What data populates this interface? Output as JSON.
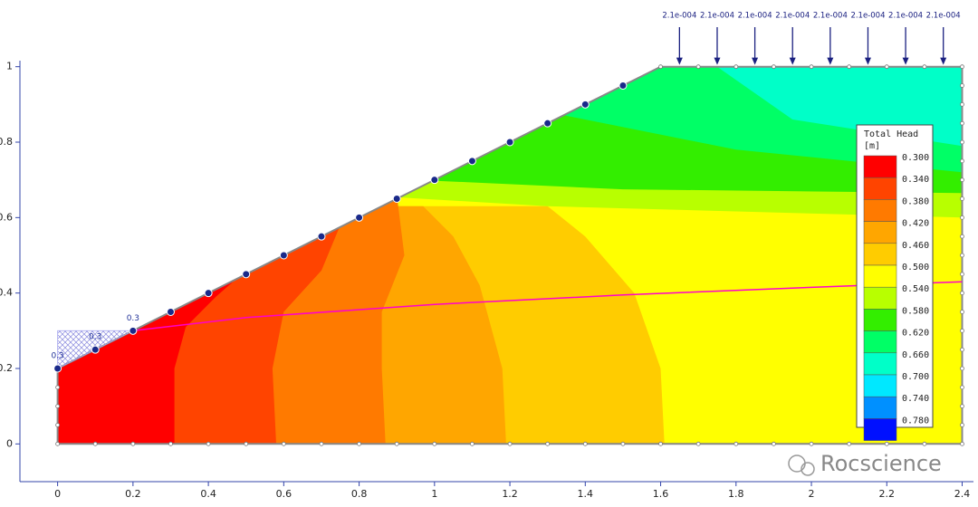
{
  "chart_data": {
    "type": "contour",
    "xlim": [
      -0.1,
      2.43
    ],
    "ylim": [
      -0.1,
      1.04
    ],
    "xticks": [
      0,
      0.2,
      0.4,
      0.6,
      0.8,
      1,
      1.2,
      1.4,
      1.6,
      1.8,
      2,
      2.2,
      2.4
    ],
    "yticks": [
      0,
      0.2,
      0.4,
      0.6,
      0.8,
      1
    ],
    "legend": {
      "title": "Total Head",
      "unit": "[m]",
      "levels": [
        {
          "value": 0.3,
          "label": "0.300"
        },
        {
          "value": 0.34,
          "label": "0.340"
        },
        {
          "value": 0.38,
          "label": "0.380"
        },
        {
          "value": 0.42,
          "label": "0.420"
        },
        {
          "value": 0.46,
          "label": "0.460"
        },
        {
          "value": 0.5,
          "label": "0.500"
        },
        {
          "value": 0.54,
          "label": "0.540"
        },
        {
          "value": 0.58,
          "label": "0.580"
        },
        {
          "value": 0.62,
          "label": "0.620"
        },
        {
          "value": 0.66,
          "label": "0.660"
        },
        {
          "value": 0.7,
          "label": "0.700"
        },
        {
          "value": 0.74,
          "label": "0.740"
        },
        {
          "value": 0.78,
          "label": "0.780"
        }
      ],
      "colors": [
        "#ff0000",
        "#ff4400",
        "#ff7a00",
        "#ffa600",
        "#ffcc00",
        "#ffff00",
        "#b8ff00",
        "#33ee00",
        "#00ff66",
        "#00ffc8",
        "#00e8ff",
        "#0090ff",
        "#0010ff"
      ]
    },
    "water_table": {
      "x": [
        0.2,
        0.5,
        1.0,
        1.5,
        2.0,
        2.4
      ],
      "y": [
        0.3,
        0.335,
        0.37,
        0.395,
        0.415,
        0.43
      ],
      "color": "#ff00cc"
    },
    "boundary_labels": [
      "0.3",
      "0.3",
      "0.3"
    ],
    "load_labels": [
      "2.1e-004",
      "2.1e-004",
      "2.1e-004",
      "2.1e-004",
      "2.1e-004",
      "2.1e-004",
      "2.1e-004",
      "2.1e-004"
    ],
    "watermark": "Rocscience"
  }
}
